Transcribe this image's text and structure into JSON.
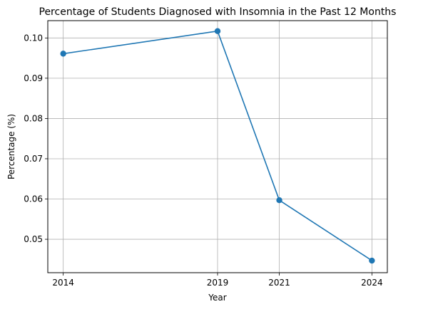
{
  "chart_data": {
    "type": "line",
    "title": "Percentage of Students Diagnosed with Insomnia in the Past 12 Months",
    "xlabel": "Year",
    "ylabel": "Percentage (%)",
    "x": [
      2014,
      2019,
      2021,
      2024
    ],
    "xticks": [
      "2014",
      "2019",
      "2021",
      "2024"
    ],
    "yticks": [
      "0.05",
      "0.06",
      "0.07",
      "0.08",
      "0.09",
      "0.10"
    ],
    "xlim": [
      2013.5,
      2024.5
    ],
    "ylim": [
      0.0417,
      0.1043
    ],
    "grid": true,
    "series": [
      {
        "values": [
          0.0961,
          0.1017,
          0.0597,
          0.0447
        ],
        "color": "#1f77b4",
        "marker": "circle"
      }
    ]
  }
}
